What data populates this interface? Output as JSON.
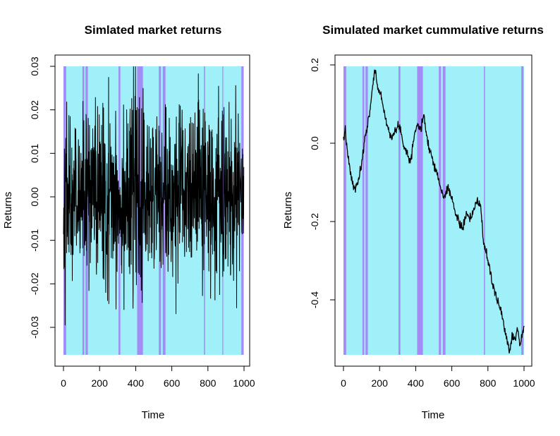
{
  "colors": {
    "background_shade": "#a0f0fa",
    "alt_shade": "#a38cf5",
    "line": "#000000",
    "axis": "#000000"
  },
  "chart_data": [
    {
      "type": "line",
      "title": "Simlated market returns",
      "xlabel": "Time",
      "ylabel": "Returns",
      "xlim": [
        0,
        1000
      ],
      "ylim": [
        -0.037,
        0.03
      ],
      "x_ticks": [
        0,
        200,
        400,
        600,
        800,
        1000
      ],
      "x_tick_labels": [
        "0",
        "200",
        "400",
        "600",
        "800",
        "1000"
      ],
      "y_ticks": [
        -0.03,
        -0.02,
        -0.01,
        0.0,
        0.01,
        0.02,
        0.03
      ],
      "y_tick_labels": [
        "-0.03",
        "-0.02",
        "-0.01",
        "0.00",
        "0.01",
        "0.02",
        "0.03"
      ],
      "regime_bands": [
        {
          "start": 0,
          "end": 15,
          "regime": 2
        },
        {
          "start": 105,
          "end": 115,
          "regime": 2
        },
        {
          "start": 122,
          "end": 135,
          "regime": 2
        },
        {
          "start": 305,
          "end": 315,
          "regime": 2
        },
        {
          "start": 408,
          "end": 440,
          "regime": 2
        },
        {
          "start": 528,
          "end": 540,
          "regime": 2
        },
        {
          "start": 550,
          "end": 565,
          "regime": 2
        },
        {
          "start": 778,
          "end": 784,
          "regime": 2
        },
        {
          "start": 880,
          "end": 885,
          "regime": 2
        },
        {
          "start": 985,
          "end": 997,
          "regime": 2
        }
      ],
      "series": [
        {
          "n": 1000,
          "summary": "simulated daily returns oscillating around 0, range approx -0.037 to 0.03",
          "amplitude_envelope": [
            {
              "x": 0,
              "sd": 0.009
            },
            {
              "x": 100,
              "sd": 0.009
            },
            {
              "x": 200,
              "sd": 0.011
            },
            {
              "x": 300,
              "sd": 0.01
            },
            {
              "x": 400,
              "sd": 0.012
            },
            {
              "x": 500,
              "sd": 0.01
            },
            {
              "x": 600,
              "sd": 0.009
            },
            {
              "x": 700,
              "sd": 0.01
            },
            {
              "x": 800,
              "sd": 0.011
            },
            {
              "x": 900,
              "sd": 0.01
            },
            {
              "x": 1000,
              "sd": 0.009
            }
          ]
        }
      ]
    },
    {
      "type": "line",
      "title": "Simulated market cummulative returns",
      "xlabel": "Time",
      "ylabel": "Returns",
      "xlim": [
        0,
        1000
      ],
      "ylim": [
        -0.55,
        0.2
      ],
      "x_ticks": [
        0,
        200,
        400,
        600,
        800,
        1000
      ],
      "x_tick_labels": [
        "0",
        "200",
        "400",
        "600",
        "800",
        "1000"
      ],
      "y_ticks": [
        -0.4,
        -0.2,
        0.0,
        0.2
      ],
      "y_tick_labels": [
        "-0.4",
        "-0.2",
        "0.0",
        "0.2"
      ],
      "regime_bands": [
        {
          "start": 0,
          "end": 15,
          "regime": 2
        },
        {
          "start": 105,
          "end": 115,
          "regime": 2
        },
        {
          "start": 122,
          "end": 135,
          "regime": 2
        },
        {
          "start": 305,
          "end": 315,
          "regime": 2
        },
        {
          "start": 408,
          "end": 440,
          "regime": 2
        },
        {
          "start": 528,
          "end": 540,
          "regime": 2
        },
        {
          "start": 550,
          "end": 565,
          "regime": 2
        },
        {
          "start": 778,
          "end": 784,
          "regime": 2
        },
        {
          "start": 985,
          "end": 997,
          "regime": 2
        }
      ],
      "series": [
        {
          "points": [
            {
              "x": 0,
              "y": 0.0
            },
            {
              "x": 10,
              "y": 0.04
            },
            {
              "x": 20,
              "y": -0.02
            },
            {
              "x": 40,
              "y": -0.08
            },
            {
              "x": 60,
              "y": -0.12
            },
            {
              "x": 80,
              "y": -0.1
            },
            {
              "x": 100,
              "y": -0.06
            },
            {
              "x": 120,
              "y": 0.02
            },
            {
              "x": 140,
              "y": 0.06
            },
            {
              "x": 160,
              "y": 0.14
            },
            {
              "x": 175,
              "y": 0.19
            },
            {
              "x": 190,
              "y": 0.14
            },
            {
              "x": 210,
              "y": 0.12
            },
            {
              "x": 230,
              "y": 0.07
            },
            {
              "x": 250,
              "y": 0.03
            },
            {
              "x": 270,
              "y": 0.02
            },
            {
              "x": 290,
              "y": 0.03
            },
            {
              "x": 310,
              "y": 0.05
            },
            {
              "x": 330,
              "y": 0.0
            },
            {
              "x": 350,
              "y": -0.02
            },
            {
              "x": 370,
              "y": -0.05
            },
            {
              "x": 390,
              "y": 0.02
            },
            {
              "x": 410,
              "y": 0.05
            },
            {
              "x": 430,
              "y": 0.03
            },
            {
              "x": 445,
              "y": 0.08
            },
            {
              "x": 460,
              "y": 0.02
            },
            {
              "x": 480,
              "y": -0.02
            },
            {
              "x": 500,
              "y": -0.05
            },
            {
              "x": 520,
              "y": -0.08
            },
            {
              "x": 540,
              "y": -0.12
            },
            {
              "x": 560,
              "y": -0.14
            },
            {
              "x": 580,
              "y": -0.11
            },
            {
              "x": 600,
              "y": -0.14
            },
            {
              "x": 620,
              "y": -0.18
            },
            {
              "x": 640,
              "y": -0.2
            },
            {
              "x": 660,
              "y": -0.22
            },
            {
              "x": 680,
              "y": -0.18
            },
            {
              "x": 700,
              "y": -0.2
            },
            {
              "x": 720,
              "y": -0.17
            },
            {
              "x": 740,
              "y": -0.15
            },
            {
              "x": 760,
              "y": -0.16
            },
            {
              "x": 775,
              "y": -0.25
            },
            {
              "x": 790,
              "y": -0.28
            },
            {
              "x": 810,
              "y": -0.32
            },
            {
              "x": 830,
              "y": -0.37
            },
            {
              "x": 850,
              "y": -0.4
            },
            {
              "x": 870,
              "y": -0.42
            },
            {
              "x": 890,
              "y": -0.47
            },
            {
              "x": 905,
              "y": -0.5
            },
            {
              "x": 920,
              "y": -0.53
            },
            {
              "x": 935,
              "y": -0.49
            },
            {
              "x": 950,
              "y": -0.5
            },
            {
              "x": 965,
              "y": -0.47
            },
            {
              "x": 980,
              "y": -0.52
            },
            {
              "x": 990,
              "y": -0.49
            },
            {
              "x": 1000,
              "y": -0.46
            }
          ]
        }
      ]
    }
  ]
}
